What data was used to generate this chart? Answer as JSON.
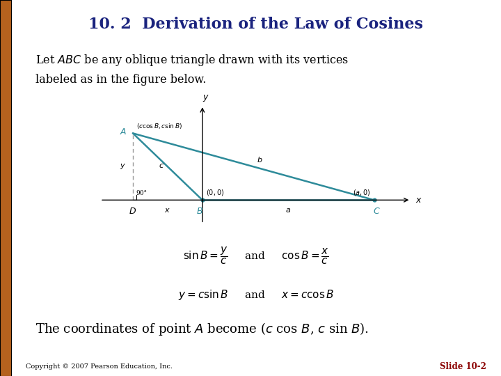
{
  "title": "10. 2  Derivation of the Law of Cosines",
  "title_color": "#1a237e",
  "title_fontsize": 16,
  "bg_color": "#ffffff",
  "left_bar_color": "#b5621e",
  "para_fontsize": 12,
  "teal_color": "#2e8b9a",
  "triangle": {
    "A": [
      -0.85,
      0.62
    ],
    "B": [
      0.0,
      0.0
    ],
    "C": [
      2.1,
      0.0
    ]
  },
  "axis_xlim": [
    -1.25,
    2.55
  ],
  "axis_ylim": [
    -0.22,
    0.88
  ],
  "copyright": "Copyright © 2007 Pearson Education, Inc.",
  "slide_label": "Slide 10-2",
  "slide_label_color": "#8b0000"
}
